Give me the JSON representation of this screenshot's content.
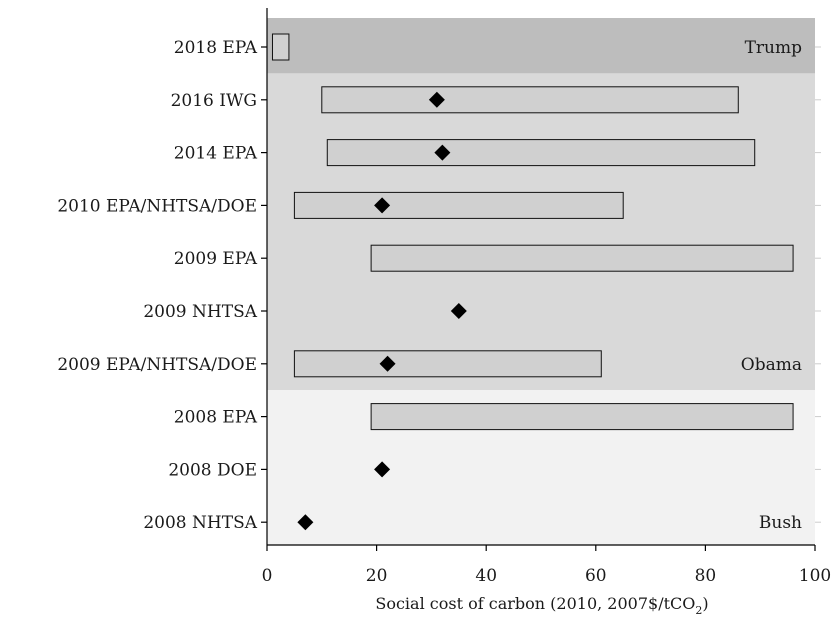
{
  "chart_data": {
    "type": "bar",
    "subtype": "range-with-central-estimate",
    "xlabel_main": "Social cost of carbon (2010, 2007$/tCO",
    "xlabel_sub": "2",
    "xlabel_end": ")",
    "xlim": [
      0,
      100
    ],
    "xticks": [
      "0",
      "20",
      "40",
      "60",
      "80",
      "100"
    ],
    "grid": false,
    "legend": "none",
    "categories": [
      "2018 EPA",
      "2016 IWG",
      "2014 EPA",
      "2010 EPA/NHTSA/DOE",
      "2009 EPA",
      "2009 NHTSA",
      "2009 EPA/NHTSA/DOE",
      "2008 EPA",
      "2008 DOE",
      "2008 NHTSA"
    ],
    "ranges": [
      {
        "category": "2018 EPA",
        "low": 1,
        "high": 4
      },
      {
        "category": "2016 IWG",
        "low": 10,
        "high": 86
      },
      {
        "category": "2014 EPA",
        "low": 11,
        "high": 89
      },
      {
        "category": "2010 EPA/NHTSA/DOE",
        "low": 5,
        "high": 65
      },
      {
        "category": "2009 EPA",
        "low": 19,
        "high": 96
      },
      {
        "category": "2009 EPA/NHTSA/DOE",
        "low": 5,
        "high": 61
      },
      {
        "category": "2008 EPA",
        "low": 19,
        "high": 96
      }
    ],
    "central_estimates": [
      {
        "category": "2016 IWG",
        "value": 31
      },
      {
        "category": "2014 EPA",
        "value": 32
      },
      {
        "category": "2010 EPA/NHTSA/DOE",
        "value": 21
      },
      {
        "category": "2009 NHTSA",
        "value": 35
      },
      {
        "category": "2009 EPA/NHTSA/DOE",
        "value": 22
      },
      {
        "category": "2008 DOE",
        "value": 21
      },
      {
        "category": "2008 NHTSA",
        "value": 7
      }
    ],
    "eras": [
      {
        "label": "Trump",
        "first": "2018 EPA",
        "last": "2018 EPA",
        "color": "#bdbdbd"
      },
      {
        "label": "Obama",
        "first": "2016 IWG",
        "last": "2009 EPA/NHTSA/DOE",
        "color": "#d9d9d9"
      },
      {
        "label": "Bush",
        "first": "2008 EPA",
        "last": "2008 NHTSA",
        "color": "#f2f2f2"
      }
    ],
    "colors": {
      "range_fill": "#d0d0d0",
      "range_stroke": "#111111",
      "marker": "#000000",
      "axis": "#000000"
    }
  }
}
